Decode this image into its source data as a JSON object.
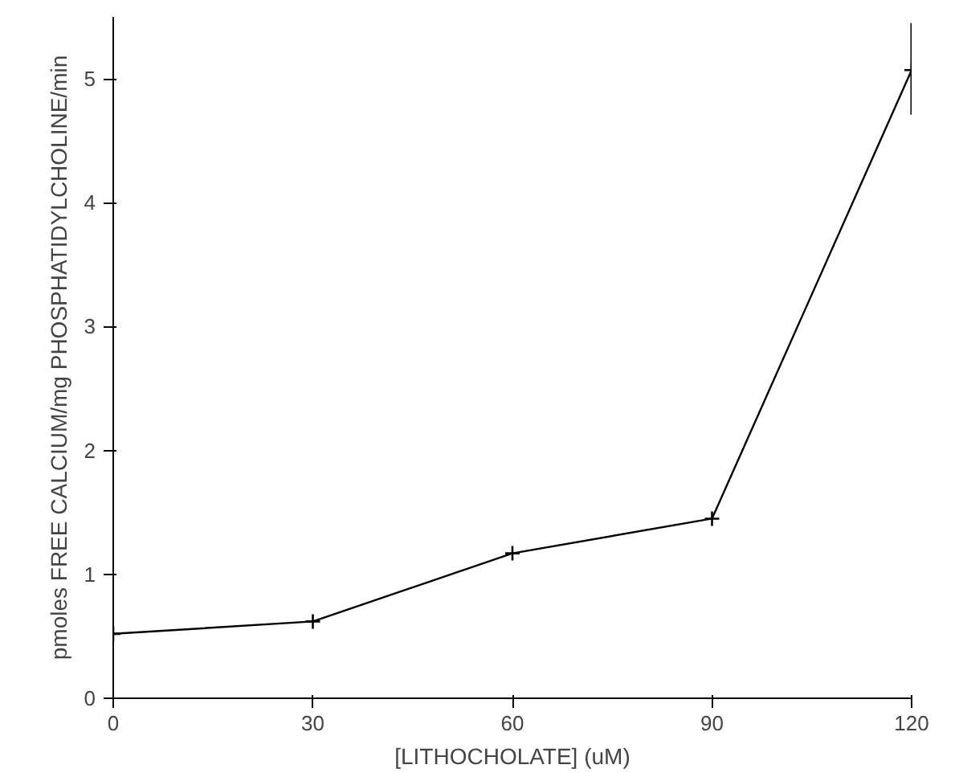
{
  "chart_data": {
    "type": "line",
    "xlabel": "[LITHOCHOLATE] (uM)",
    "ylabel": "pmoles FREE CALCIUM/mg PHOSPHATIDYLCHOLINE/min",
    "x": [
      0,
      30,
      60,
      90,
      120
    ],
    "series": [
      {
        "color": "#000000",
        "values": [
          0.52,
          0.62,
          1.17,
          1.45,
          5.07
        ],
        "errors": [
          null,
          null,
          null,
          null,
          [
            4.71,
            5.45
          ]
        ]
      }
    ],
    "xlim": [
      0,
      120
    ],
    "xticks": [
      0,
      30,
      60,
      90,
      120
    ],
    "ylim": [
      0,
      5.5
    ],
    "yticks": [
      0,
      1,
      2,
      3,
      4,
      5
    ],
    "marker": "cross",
    "line_style": "solid",
    "grid": false
  }
}
